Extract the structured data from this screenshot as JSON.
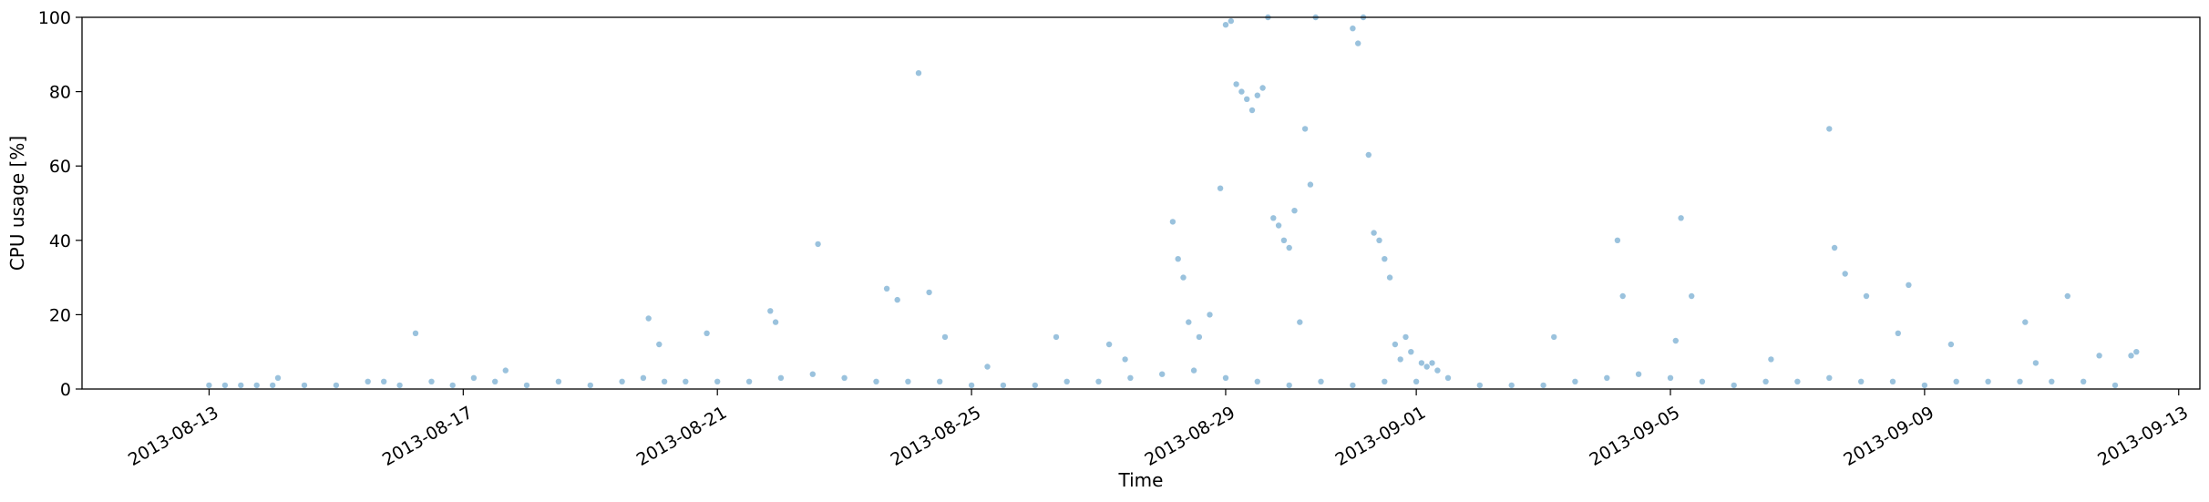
{
  "chart_data": {
    "type": "scatter",
    "title": "",
    "xlabel": "Time",
    "ylabel": "CPU usage [%]",
    "xlim": [
      "2013-08-11T00:00",
      "2013-09-13T08:00"
    ],
    "ylim": [
      0,
      100
    ],
    "grid": false,
    "legend": "none",
    "marker_color": "#1f77b4",
    "marker_alpha": 0.45,
    "x_ticks": [
      "2013-08-13",
      "2013-08-17",
      "2013-08-21",
      "2013-08-25",
      "2013-08-29",
      "2013-09-01",
      "2013-09-05",
      "2013-09-09",
      "2013-09-13"
    ],
    "y_ticks": [
      0,
      20,
      40,
      60,
      80,
      100
    ],
    "series": [
      {
        "x": [
          "2013-08-13T00:00",
          "2013-08-13T06:00",
          "2013-08-13T12:00",
          "2013-08-13T18:00",
          "2013-08-14T00:00",
          "2013-08-14T12:00",
          "2013-08-15T00:00",
          "2013-08-15T12:00",
          "2013-08-16T00:00",
          "2013-08-16T12:00",
          "2013-08-16T20:00",
          "2013-08-17T04:00",
          "2013-08-17T12:00",
          "2013-08-18T00:00",
          "2013-08-18T12:00",
          "2013-08-19T00:00",
          "2013-08-19T12:00",
          "2013-08-19T20:00",
          "2013-08-20T04:00",
          "2013-08-20T12:00",
          "2013-08-21T00:00",
          "2013-08-21T12:00",
          "2013-08-22T00:00",
          "2013-08-22T12:00",
          "2013-08-23T00:00",
          "2013-08-23T12:00",
          "2013-08-24T00:00",
          "2013-08-24T12:00",
          "2013-08-25T00:00",
          "2013-08-25T12:00",
          "2013-08-26T00:00",
          "2013-08-26T12:00",
          "2013-08-27T00:00",
          "2013-08-27T12:00",
          "2013-08-28T00:00",
          "2013-08-28T12:00",
          "2013-08-29T00:00",
          "2013-08-29T12:00",
          "2013-08-30T00:00",
          "2013-08-30T12:00",
          "2013-08-31T00:00",
          "2013-08-31T12:00",
          "2013-09-01T00:00",
          "2013-09-01T12:00",
          "2013-09-02T00:00",
          "2013-09-02T12:00",
          "2013-09-03T00:00",
          "2013-09-03T12:00",
          "2013-09-04T00:00",
          "2013-09-04T12:00",
          "2013-09-05T00:00",
          "2013-09-05T12:00",
          "2013-09-06T00:00",
          "2013-09-06T12:00",
          "2013-09-07T00:00",
          "2013-09-07T12:00",
          "2013-09-08T00:00",
          "2013-09-08T12:00",
          "2013-09-09T00:00",
          "2013-09-09T12:00",
          "2013-09-10T00:00",
          "2013-09-10T12:00",
          "2013-09-11T00:00",
          "2013-09-11T12:00",
          "2013-09-12T00:00",
          "2013-08-14T02:00",
          "2013-08-15T18:00",
          "2013-08-16T06:00",
          "2013-08-17T16:00",
          "2013-08-19T22:00",
          "2013-08-20T02:00",
          "2013-08-20T20:00",
          "2013-08-21T20:00",
          "2013-08-21T22:00",
          "2013-08-22T14:00",
          "2013-08-23T16:00",
          "2013-08-23T20:00",
          "2013-08-24T04:00",
          "2013-08-24T08:00",
          "2013-08-24T14:00",
          "2013-08-25T06:00",
          "2013-08-26T08:00",
          "2013-08-27T04:00",
          "2013-08-27T10:00",
          "2013-08-28T04:00",
          "2013-08-28T06:00",
          "2013-08-28T08:00",
          "2013-08-28T10:00",
          "2013-08-28T14:00",
          "2013-08-28T18:00",
          "2013-08-28T22:00",
          "2013-08-29T00:00",
          "2013-08-29T02:00",
          "2013-08-29T04:00",
          "2013-08-29T06:00",
          "2013-08-29T08:00",
          "2013-08-29T10:00",
          "2013-08-29T12:00",
          "2013-08-29T14:00",
          "2013-08-29T16:00",
          "2013-08-29T18:00",
          "2013-08-29T20:00",
          "2013-08-29T22:00",
          "2013-08-30T00:00",
          "2013-08-30T02:00",
          "2013-08-30T04:00",
          "2013-08-30T06:00",
          "2013-08-30T08:00",
          "2013-08-30T10:00",
          "2013-08-31T00:00",
          "2013-08-31T02:00",
          "2013-08-31T04:00",
          "2013-08-31T06:00",
          "2013-08-31T08:00",
          "2013-08-31T10:00",
          "2013-08-31T12:00",
          "2013-08-31T14:00",
          "2013-08-31T16:00",
          "2013-08-31T18:00",
          "2013-08-31T20:00",
          "2013-08-31T22:00",
          "2013-09-01T02:00",
          "2013-09-01T04:00",
          "2013-09-01T06:00",
          "2013-09-01T08:00",
          "2013-09-03T04:00",
          "2013-09-04T04:00",
          "2013-09-04T06:00",
          "2013-09-05T02:00",
          "2013-09-05T04:00",
          "2013-09-05T08:00",
          "2013-09-06T14:00",
          "2013-09-07T12:00",
          "2013-09-07T14:00",
          "2013-09-07T18:00",
          "2013-09-08T02:00",
          "2013-09-08T14:00",
          "2013-09-08T18:00",
          "2013-09-09T10:00",
          "2013-09-10T14:00",
          "2013-09-10T18:00",
          "2013-09-11T06:00",
          "2013-09-11T18:00",
          "2013-09-12T06:00",
          "2013-09-12T08:00"
        ],
        "y": [
          1,
          1,
          1,
          1,
          1,
          1,
          1,
          2,
          1,
          2,
          1,
          3,
          2,
          1,
          2,
          1,
          2,
          3,
          2,
          2,
          2,
          2,
          3,
          4,
          3,
          2,
          2,
          2,
          1,
          1,
          1,
          2,
          2,
          3,
          4,
          5,
          3,
          2,
          1,
          2,
          1,
          2,
          2,
          3,
          1,
          1,
          1,
          2,
          3,
          4,
          3,
          2,
          1,
          2,
          2,
          3,
          2,
          2,
          1,
          2,
          2,
          2,
          2,
          2,
          1,
          3,
          2,
          15,
          5,
          19,
          12,
          15,
          21,
          18,
          39,
          27,
          24,
          85,
          26,
          14,
          6,
          14,
          12,
          8,
          45,
          35,
          30,
          18,
          14,
          20,
          54,
          98,
          99,
          82,
          80,
          78,
          75,
          79,
          81,
          100,
          46,
          44,
          40,
          38,
          48,
          18,
          70,
          55,
          100,
          97,
          93,
          100,
          63,
          42,
          40,
          35,
          30,
          12,
          8,
          14,
          10,
          7,
          6,
          7,
          5,
          14,
          40,
          25,
          13,
          46,
          25,
          8,
          70,
          38,
          31,
          25,
          15,
          28,
          12,
          18,
          7,
          25,
          9,
          9,
          10
        ]
      }
    ]
  }
}
